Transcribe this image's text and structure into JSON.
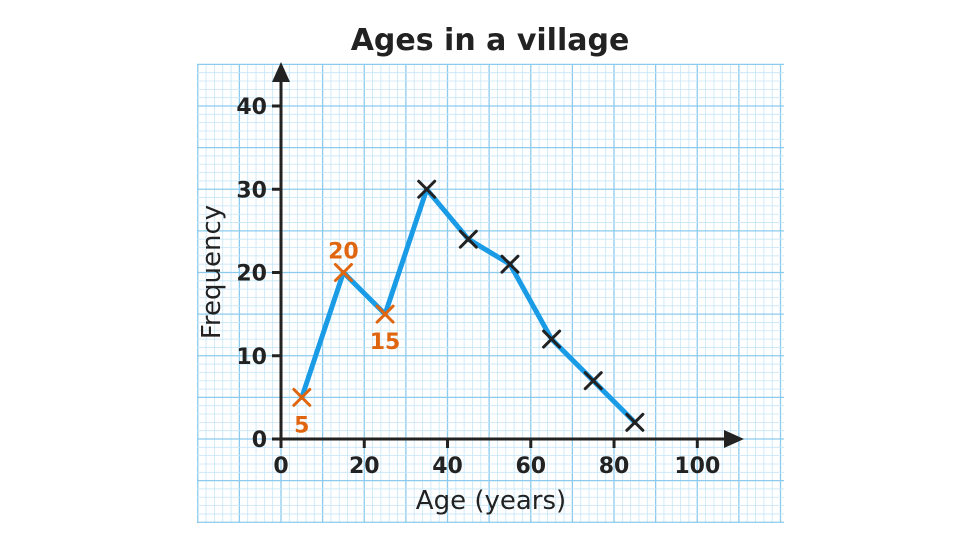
{
  "chart_data": {
    "type": "line",
    "title": "Ages in a village",
    "xlabel": "Age (years)",
    "ylabel": "Frequency",
    "xlim": [
      0,
      100
    ],
    "ylim": [
      0,
      40
    ],
    "x_ticks": [
      "0",
      "20",
      "40",
      "60",
      "80",
      "100"
    ],
    "y_ticks": [
      "0",
      "10",
      "20",
      "30",
      "40"
    ],
    "grid": true,
    "series": [
      {
        "x": [
          5,
          15,
          25,
          35,
          45,
          55,
          65,
          75,
          85
        ],
        "y": [
          5,
          20,
          15,
          30,
          24,
          21,
          12,
          7,
          2
        ]
      }
    ],
    "annotations": [
      {
        "x": 5,
        "y": 5,
        "text": "5",
        "position": "below"
      },
      {
        "x": 15,
        "y": 20,
        "text": "20",
        "position": "above"
      },
      {
        "x": 25,
        "y": 15,
        "text": "15",
        "position": "below"
      }
    ],
    "colors": {
      "line": "#1a9be6",
      "marker": "#222222",
      "highlight": "#e0650f",
      "grid_minor": "#c6e6f7",
      "grid_major": "#8ccbee",
      "axis": "#222222"
    }
  }
}
